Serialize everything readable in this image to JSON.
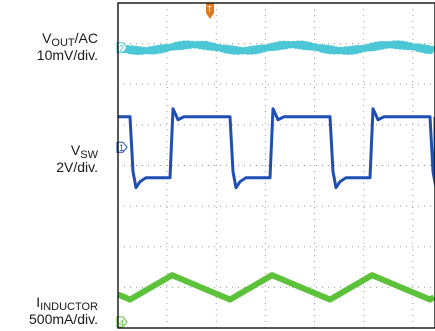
{
  "channels": [
    {
      "id": "ch2",
      "name_main": "V",
      "name_sub": "OUT",
      "name_suffix": "/AC",
      "scale": "10mV/div.",
      "marker": "2",
      "color": "#4cc7d6"
    },
    {
      "id": "ch1",
      "name_main": "V",
      "name_sub": "SW",
      "name_suffix": "",
      "scale": "2V/div.",
      "marker": "1",
      "color": "#1f4fb5"
    },
    {
      "id": "ch4",
      "name_main": "I",
      "name_sub": "INDUCTOR",
      "name_suffix": "",
      "scale": "500mA/div.",
      "marker": "4",
      "color": "#5cc23a"
    }
  ],
  "trigger": {
    "marker": "T",
    "color": "#e07a22"
  },
  "chart_data": {
    "type": "line",
    "title": "",
    "xlabel": "",
    "ylabel": "",
    "grid": true,
    "x_divisions": 10,
    "y_divisions": 8,
    "series": [
      {
        "name": "VOUT/AC",
        "scale": "10mV/div.",
        "waveform": "ripple",
        "level_div": 6.9
      },
      {
        "name": "VSW",
        "scale": "2V/div.",
        "waveform": "square",
        "high_div": 5.2,
        "low_div": 3.7,
        "period_div": 2.3
      },
      {
        "name": "IINDUCTOR",
        "scale": "500mA/div.",
        "waveform": "triangle",
        "mid_div": 1.0,
        "amplitude_div": 0.3,
        "period_div": 2.3
      }
    ]
  }
}
